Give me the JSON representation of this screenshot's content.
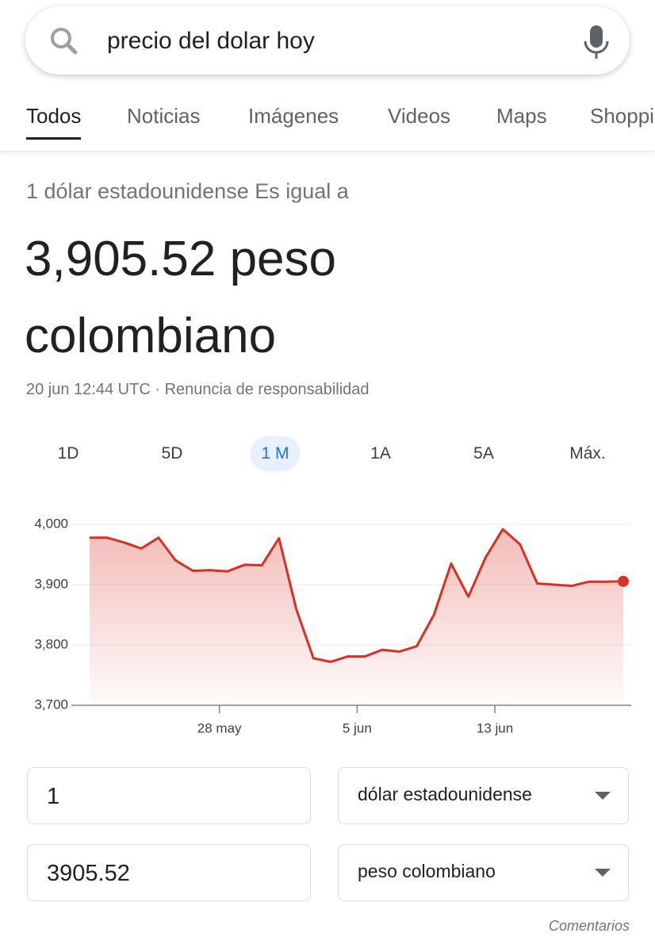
{
  "search": {
    "query": "precio del dolar hoy"
  },
  "tabs": {
    "items": [
      "Todos",
      "Noticias",
      "Imágenes",
      "Videos",
      "Maps",
      "Shopping"
    ],
    "active": 0
  },
  "converter": {
    "intro": "1 dólar estadounidense Es igual a",
    "result": "3,905.52 peso colombiano",
    "timestamp": "20 jun 12:44 UTC",
    "separator": "·",
    "disclaimer": "Renuncia de responsabilidad",
    "amount_from": "1",
    "currency_from": "dólar estadounidense",
    "amount_to": "3905.52",
    "currency_to": "peso colombiano",
    "feedback": "Comentarios"
  },
  "ranges": {
    "items": [
      "1D",
      "5D",
      "1 M",
      "1A",
      "5A",
      "Máx."
    ],
    "active": 2
  },
  "chart_data": {
    "type": "area",
    "color": "#d93025",
    "grid": true,
    "categories": [
      null,
      null,
      null,
      null,
      null,
      null,
      null,
      null,
      "28 may",
      null,
      null,
      null,
      null,
      null,
      null,
      null,
      "5 jun",
      null,
      null,
      null,
      null,
      null,
      null,
      null,
      "13 jun",
      null,
      null,
      null,
      null,
      null,
      null,
      null
    ],
    "values": [
      3978,
      3978,
      3970,
      3960,
      3978,
      3940,
      3923,
      3924,
      3922,
      3933,
      3932,
      3977,
      3860,
      3778,
      3772,
      3781,
      3781,
      3792,
      3789,
      3798,
      3850,
      3935,
      3880,
      3945,
      3992,
      3967,
      3902,
      3900,
      3898,
      3905,
      3905,
      3905.52
    ],
    "ylim": [
      3700,
      4000
    ],
    "yticks": [
      {
        "value": 3700,
        "label": "3,700"
      },
      {
        "value": 3800,
        "label": "3,800"
      },
      {
        "value": 3900,
        "label": "3,900"
      },
      {
        "value": 4000,
        "label": "4,000"
      }
    ]
  }
}
